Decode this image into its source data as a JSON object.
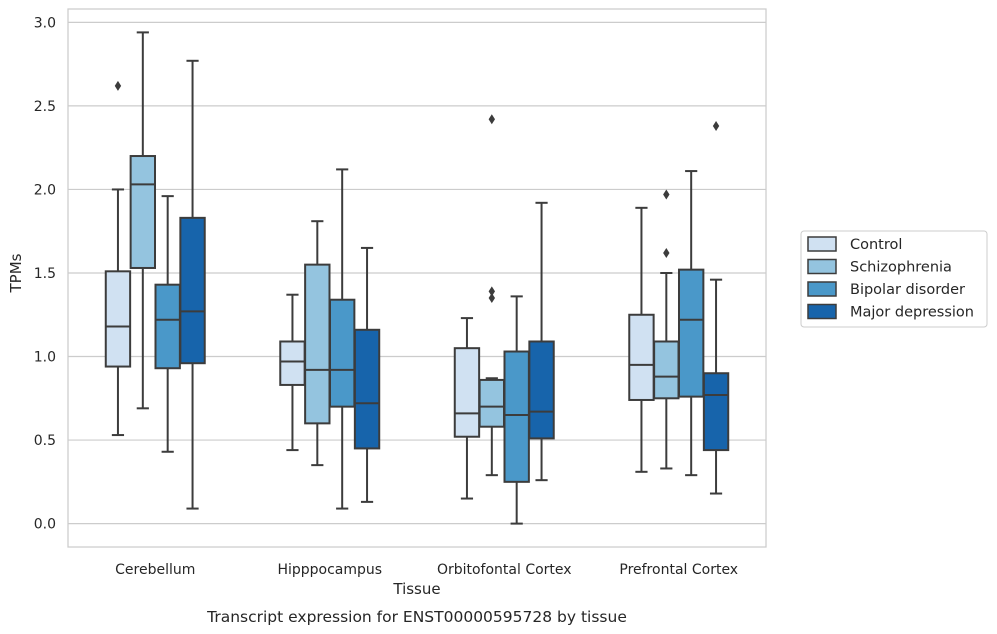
{
  "caption": "Transcript expression for ENST00000595728 by tissue",
  "chart_data": {
    "type": "box",
    "xlabel": "Tissue",
    "ylabel": "TPMs",
    "ylim": [
      -0.14,
      3.08
    ],
    "yticks": [
      "0.0",
      "0.5",
      "1.0",
      "1.5",
      "2.0",
      "2.5",
      "3.0"
    ],
    "grid": "horizontal",
    "legend_position": "right",
    "categories": [
      "Cerebellum",
      "Hipppocampus",
      "Orbitofontal Cortex",
      "Prefrontal Cortex"
    ],
    "colors": [
      "#d0e1f2",
      "#94c4df",
      "#4a98c9",
      "#1764ab"
    ],
    "series": [
      {
        "name": "Control",
        "boxes": [
          {
            "whislo": 0.53,
            "q1": 0.94,
            "med": 1.18,
            "q3": 1.51,
            "whishi": 2.0,
            "fliers": [
              2.62
            ]
          },
          {
            "whislo": 0.44,
            "q1": 0.83,
            "med": 0.97,
            "q3": 1.09,
            "whishi": 1.37,
            "fliers": []
          },
          {
            "whislo": 0.15,
            "q1": 0.52,
            "med": 0.66,
            "q3": 1.05,
            "whishi": 1.23,
            "fliers": []
          },
          {
            "whislo": 0.31,
            "q1": 0.74,
            "med": 0.95,
            "q3": 1.25,
            "whishi": 1.89,
            "fliers": []
          }
        ]
      },
      {
        "name": "Schizophrenia",
        "boxes": [
          {
            "whislo": 0.69,
            "q1": 1.53,
            "med": 2.03,
            "q3": 2.2,
            "whishi": 2.94,
            "fliers": []
          },
          {
            "whislo": 0.35,
            "q1": 0.6,
            "med": 0.92,
            "q3": 1.55,
            "whishi": 1.81,
            "fliers": []
          },
          {
            "whislo": 0.29,
            "q1": 0.58,
            "med": 0.7,
            "q3": 0.86,
            "whishi": 0.87,
            "fliers": [
              1.35,
              1.39,
              2.42
            ]
          },
          {
            "whislo": 0.33,
            "q1": 0.75,
            "med": 0.88,
            "q3": 1.09,
            "whishi": 1.5,
            "fliers": [
              1.62,
              1.97
            ]
          }
        ]
      },
      {
        "name": "Bipolar disorder",
        "boxes": [
          {
            "whislo": 0.43,
            "q1": 0.93,
            "med": 1.22,
            "q3": 1.43,
            "whishi": 1.96,
            "fliers": []
          },
          {
            "whislo": 0.09,
            "q1": 0.7,
            "med": 0.92,
            "q3": 1.34,
            "whishi": 2.12,
            "fliers": []
          },
          {
            "whislo": 0.0,
            "q1": 0.25,
            "med": 0.65,
            "q3": 1.03,
            "whishi": 1.36,
            "fliers": []
          },
          {
            "whislo": 0.29,
            "q1": 0.76,
            "med": 1.22,
            "q3": 1.52,
            "whishi": 2.11,
            "fliers": []
          }
        ]
      },
      {
        "name": "Major depression",
        "boxes": [
          {
            "whislo": 0.09,
            "q1": 0.96,
            "med": 1.27,
            "q3": 1.83,
            "whishi": 2.77,
            "fliers": []
          },
          {
            "whislo": 0.13,
            "q1": 0.45,
            "med": 0.72,
            "q3": 1.16,
            "whishi": 1.65,
            "fliers": []
          },
          {
            "whislo": 0.26,
            "q1": 0.51,
            "med": 0.67,
            "q3": 1.09,
            "whishi": 1.92,
            "fliers": []
          },
          {
            "whislo": 0.18,
            "q1": 0.44,
            "med": 0.77,
            "q3": 0.9,
            "whishi": 1.46,
            "fliers": [
              2.38
            ]
          }
        ]
      }
    ]
  }
}
